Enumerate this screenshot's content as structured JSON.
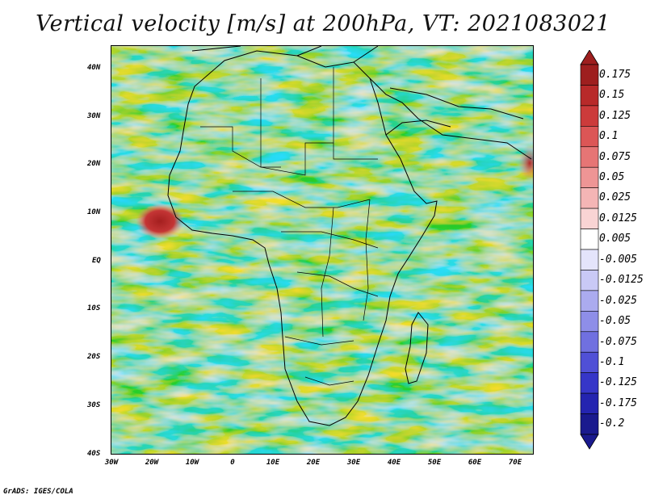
{
  "title": "Vertical velocity [m/s] at 200hPa, VT: 2021083021",
  "credit": "GrADS: IGES/COLA",
  "map": {
    "lat_labels": [
      "40N",
      "30N",
      "20N",
      "10N",
      "EQ",
      "10S",
      "20S",
      "30S",
      "40S"
    ],
    "lon_labels": [
      "30W",
      "20W",
      "10W",
      "0",
      "10E",
      "20E",
      "30E",
      "40E",
      "50E",
      "60E",
      "70E"
    ],
    "lat_range": [
      -40,
      45
    ],
    "lon_range": [
      -30,
      75
    ]
  },
  "colorbar": {
    "labels": [
      "0.175",
      "0.15",
      "0.125",
      "0.1",
      "0.075",
      "0.05",
      "0.025",
      "0.0125",
      "0.005",
      "-0.005",
      "-0.0125",
      "-0.025",
      "-0.05",
      "-0.075",
      "-0.1",
      "-0.125",
      "-0.175",
      "-0.2"
    ],
    "colors": [
      "#9e1f1f",
      "#b82a2a",
      "#cc3b3b",
      "#dc5656",
      "#e67575",
      "#ee9595",
      "#f4b5b5",
      "#f9d4d4",
      "#ffffff",
      "#e4e4fb",
      "#c9c9f6",
      "#ababef",
      "#8e8ee8",
      "#7070e0",
      "#5050d6",
      "#3636c8",
      "#2424b0",
      "#1a1a8e"
    ]
  }
}
